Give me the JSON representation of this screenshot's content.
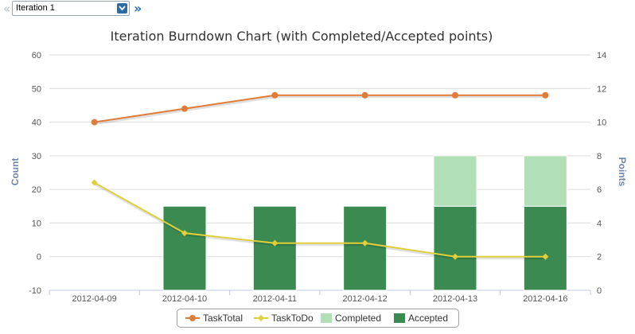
{
  "toolbar": {
    "prev_icon": "double-chevron-left-icon",
    "next_icon": "double-chevron-right-icon",
    "dropdown_icon": "chevron-down-icon",
    "iteration_value": "Iteration 1"
  },
  "colors": {
    "task_total": "#e07b39",
    "task_todo": "#e0cf3a",
    "completed": "#b2e0b6",
    "accepted": "#3a8a52",
    "grid": "#dcdcdc",
    "axis_text": "#555555",
    "axis_title": "#6e86a8"
  },
  "chart_data": {
    "type": "bar",
    "title": "Iteration Burndown Chart (with Completed/Accepted points)",
    "categories": [
      "2012-04-09",
      "2012-04-10",
      "2012-04-11",
      "2012-04-12",
      "2012-04-13",
      "2012-04-16"
    ],
    "y_left": {
      "label": "Count",
      "range": [
        -10,
        60
      ],
      "ticks": [
        "60",
        "50",
        "40",
        "30",
        "20",
        "10",
        "0",
        "-10"
      ]
    },
    "y_right": {
      "label": "Points",
      "range": [
        0,
        14
      ],
      "ticks": [
        "14",
        "12",
        "10",
        "8",
        "6",
        "4",
        "2",
        "0"
      ]
    },
    "series": [
      {
        "name": "TaskTotal",
        "type": "line",
        "axis": "left",
        "marker": "circle",
        "values": [
          40,
          44,
          48,
          48,
          48,
          48
        ]
      },
      {
        "name": "TaskToDo",
        "type": "line",
        "axis": "left",
        "marker": "diamond",
        "values": [
          22,
          7,
          4,
          4,
          0,
          0
        ]
      },
      {
        "name": "Completed",
        "type": "bar",
        "axis": "right",
        "stacked": true,
        "values": [
          0,
          0,
          0,
          0,
          3,
          3
        ]
      },
      {
        "name": "Accepted",
        "type": "bar",
        "axis": "right",
        "stacked": true,
        "values": [
          0,
          5,
          5,
          5,
          5,
          5
        ]
      }
    ],
    "grid": true,
    "legend_position": "bottom-center"
  }
}
